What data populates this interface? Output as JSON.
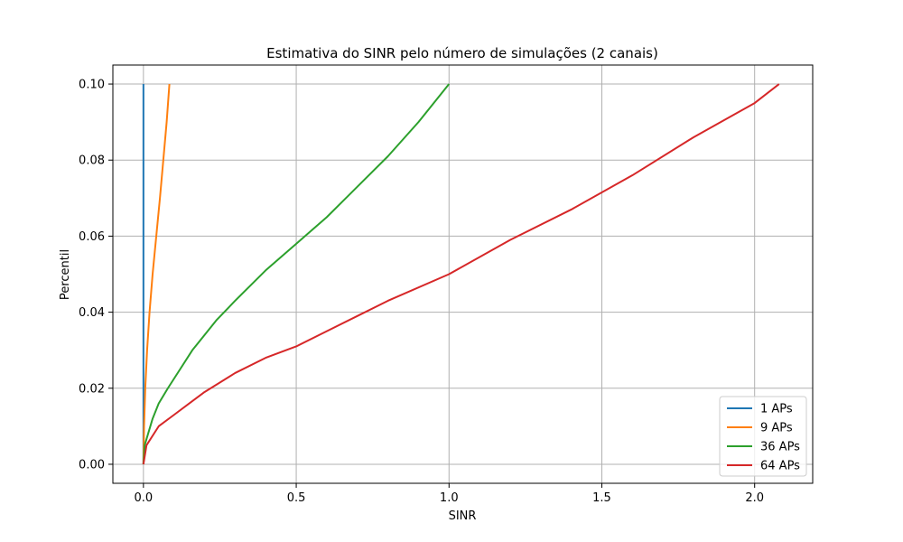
{
  "chart_data": {
    "type": "line",
    "title": "Estimativa do SINR pelo número de simulações (2 canais)",
    "xlabel": "SINR",
    "ylabel": "Percentil",
    "xlim": [
      -0.1,
      2.19
    ],
    "ylim": [
      -0.005,
      0.105
    ],
    "xticks": [
      0.0,
      0.5,
      1.0,
      1.5,
      2.0
    ],
    "xtick_labels": [
      "0.0",
      "0.5",
      "1.0",
      "1.5",
      "2.0"
    ],
    "yticks": [
      0.0,
      0.02,
      0.04,
      0.06,
      0.08,
      0.1
    ],
    "ytick_labels": [
      "0.00",
      "0.02",
      "0.04",
      "0.06",
      "0.08",
      "0.10"
    ],
    "grid": true,
    "legend_position": "lower right",
    "series": [
      {
        "name": "1 APs",
        "color": "#1f77b4",
        "points": [
          [
            0.0,
            0.0
          ],
          [
            0.0,
            0.03
          ],
          [
            0.0,
            0.06
          ],
          [
            0.0,
            0.1
          ]
        ]
      },
      {
        "name": "9 APs",
        "color": "#ff7f0e",
        "points": [
          [
            0.0,
            0.0
          ],
          [
            0.002,
            0.01
          ],
          [
            0.006,
            0.02
          ],
          [
            0.012,
            0.03
          ],
          [
            0.02,
            0.04
          ],
          [
            0.03,
            0.05
          ],
          [
            0.042,
            0.06
          ],
          [
            0.054,
            0.07
          ],
          [
            0.065,
            0.08
          ],
          [
            0.076,
            0.09
          ],
          [
            0.085,
            0.1
          ]
        ]
      },
      {
        "name": "36 APs",
        "color": "#2ca02c",
        "points": [
          [
            0.0,
            0.0
          ],
          [
            0.004,
            0.005
          ],
          [
            0.03,
            0.012
          ],
          [
            0.05,
            0.016
          ],
          [
            0.08,
            0.02
          ],
          [
            0.12,
            0.025
          ],
          [
            0.16,
            0.03
          ],
          [
            0.24,
            0.038
          ],
          [
            0.3,
            0.043
          ],
          [
            0.4,
            0.051
          ],
          [
            0.5,
            0.058
          ],
          [
            0.6,
            0.065
          ],
          [
            0.7,
            0.073
          ],
          [
            0.8,
            0.081
          ],
          [
            0.9,
            0.09
          ],
          [
            1.0,
            0.1
          ]
        ]
      },
      {
        "name": "64 APs",
        "color": "#d62728",
        "points": [
          [
            0.0,
            0.0
          ],
          [
            0.01,
            0.005
          ],
          [
            0.05,
            0.01
          ],
          [
            0.1,
            0.013
          ],
          [
            0.15,
            0.016
          ],
          [
            0.2,
            0.019
          ],
          [
            0.3,
            0.024
          ],
          [
            0.4,
            0.028
          ],
          [
            0.5,
            0.031
          ],
          [
            0.6,
            0.035
          ],
          [
            0.7,
            0.039
          ],
          [
            0.8,
            0.043
          ],
          [
            1.0,
            0.05
          ],
          [
            1.2,
            0.059
          ],
          [
            1.4,
            0.067
          ],
          [
            1.6,
            0.076
          ],
          [
            1.8,
            0.086
          ],
          [
            2.0,
            0.095
          ],
          [
            2.08,
            0.1
          ]
        ]
      }
    ]
  }
}
